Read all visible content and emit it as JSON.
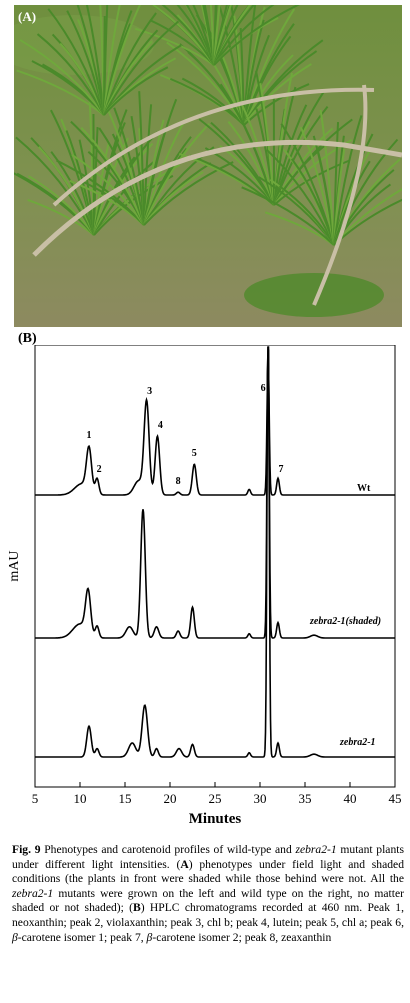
{
  "figure": {
    "panel_a_label": "(A)",
    "panel_b_label": "(B)"
  },
  "chart_data": {
    "type": "line",
    "xlabel": "Minutes",
    "ylabel": "mAU",
    "xlim": [
      5,
      45
    ],
    "x_ticks": [
      5,
      10,
      15,
      20,
      25,
      30,
      35,
      40,
      45
    ],
    "grid": false,
    "peak_labels": [
      {
        "label": "1",
        "x": 11.0,
        "trace": "Wt"
      },
      {
        "label": "2",
        "x": 11.9,
        "trace": "Wt"
      },
      {
        "label": "3",
        "x": 17.4,
        "trace": "Wt"
      },
      {
        "label": "4",
        "x": 18.6,
        "trace": "Wt"
      },
      {
        "label": "5",
        "x": 22.7,
        "trace": "Wt"
      },
      {
        "label": "6",
        "x": 30.9,
        "trace": "Wt"
      },
      {
        "label": "7",
        "x": 32.0,
        "trace": "Wt"
      },
      {
        "label": "8",
        "x": 20.9,
        "trace": "Wt"
      }
    ],
    "series": [
      {
        "name": "Wt",
        "baseline": 0.0,
        "peaks": [
          {
            "x": 10.2,
            "h": 0.08,
            "w": 0.8
          },
          {
            "x": 11.0,
            "h": 0.3,
            "w": 0.28
          },
          {
            "x": 11.9,
            "h": 0.11,
            "w": 0.2
          },
          {
            "x": 16.5,
            "h": 0.1,
            "w": 0.5
          },
          {
            "x": 17.4,
            "h": 0.66,
            "w": 0.28
          },
          {
            "x": 18.6,
            "h": 0.42,
            "w": 0.25
          },
          {
            "x": 20.9,
            "h": 0.02,
            "w": 0.2
          },
          {
            "x": 22.7,
            "h": 0.22,
            "w": 0.22
          },
          {
            "x": 28.8,
            "h": 0.04,
            "w": 0.15
          },
          {
            "x": 30.9,
            "h": 0.98,
            "w": 0.12
          },
          {
            "x": 32.0,
            "h": 0.12,
            "w": 0.15
          }
        ]
      },
      {
        "name": "zebra2-1(shaded)",
        "baseline": 0.0,
        "peaks": [
          {
            "x": 10.0,
            "h": 0.1,
            "w": 0.8
          },
          {
            "x": 10.9,
            "h": 0.3,
            "w": 0.28
          },
          {
            "x": 11.9,
            "h": 0.08,
            "w": 0.2
          },
          {
            "x": 15.5,
            "h": 0.08,
            "w": 0.4
          },
          {
            "x": 17.0,
            "h": 0.92,
            "w": 0.25
          },
          {
            "x": 18.5,
            "h": 0.08,
            "w": 0.25
          },
          {
            "x": 20.9,
            "h": 0.05,
            "w": 0.2
          },
          {
            "x": 22.5,
            "h": 0.22,
            "w": 0.2
          },
          {
            "x": 28.8,
            "h": 0.03,
            "w": 0.15
          },
          {
            "x": 30.9,
            "h": 2.2,
            "w": 0.12
          },
          {
            "x": 32.0,
            "h": 0.11,
            "w": 0.15
          },
          {
            "x": 36.0,
            "h": 0.02,
            "w": 0.4
          }
        ]
      },
      {
        "name": "zebra2-1",
        "baseline": 0.0,
        "peaks": [
          {
            "x": 11.0,
            "h": 0.22,
            "w": 0.25
          },
          {
            "x": 11.9,
            "h": 0.06,
            "w": 0.2
          },
          {
            "x": 15.8,
            "h": 0.1,
            "w": 0.4
          },
          {
            "x": 17.2,
            "h": 0.37,
            "w": 0.3
          },
          {
            "x": 18.5,
            "h": 0.06,
            "w": 0.2
          },
          {
            "x": 21.0,
            "h": 0.06,
            "w": 0.3
          },
          {
            "x": 22.5,
            "h": 0.09,
            "w": 0.2
          },
          {
            "x": 28.8,
            "h": 0.03,
            "w": 0.15
          },
          {
            "x": 30.9,
            "h": 3.2,
            "w": 0.12
          },
          {
            "x": 32.0,
            "h": 0.1,
            "w": 0.15
          },
          {
            "x": 36.0,
            "h": 0.02,
            "w": 0.4
          }
        ]
      }
    ]
  },
  "caption": {
    "fig_label": "Fig. 9",
    "text_1": " Phenotypes and carotenoid profiles of wild-type and ",
    "zebra": "zebra2-1",
    "text_2": " mutant plants under different light intensities. (",
    "A": "A",
    "text_3": ") phenotypes under field light and shaded conditions (the plants in front were shaded while those behind were not. All the ",
    "zebra_b": "zebra2-1",
    "text_4": " mutants were grown on the left and wild type on the right, no matter shaded or not shaded); (",
    "B": "B",
    "text_5": ") HPLC chromatograms recorded at 460 nm. Peak 1, neoxanthin; peak 2, violaxanthin; peak 3, chl b; peak 4, lutein; peak 5, chl a; peak 6, ",
    "beta1": "β",
    "text_6": "-carotene isomer 1; peak 7, ",
    "beta2": "β",
    "text_7": "-carotene isomer 2; peak 8, zeaxanthin"
  },
  "colors": {
    "water": "#6b8a3a",
    "grass": "#5f8f2c",
    "mud": "#8a7a55",
    "line": "#000000"
  }
}
